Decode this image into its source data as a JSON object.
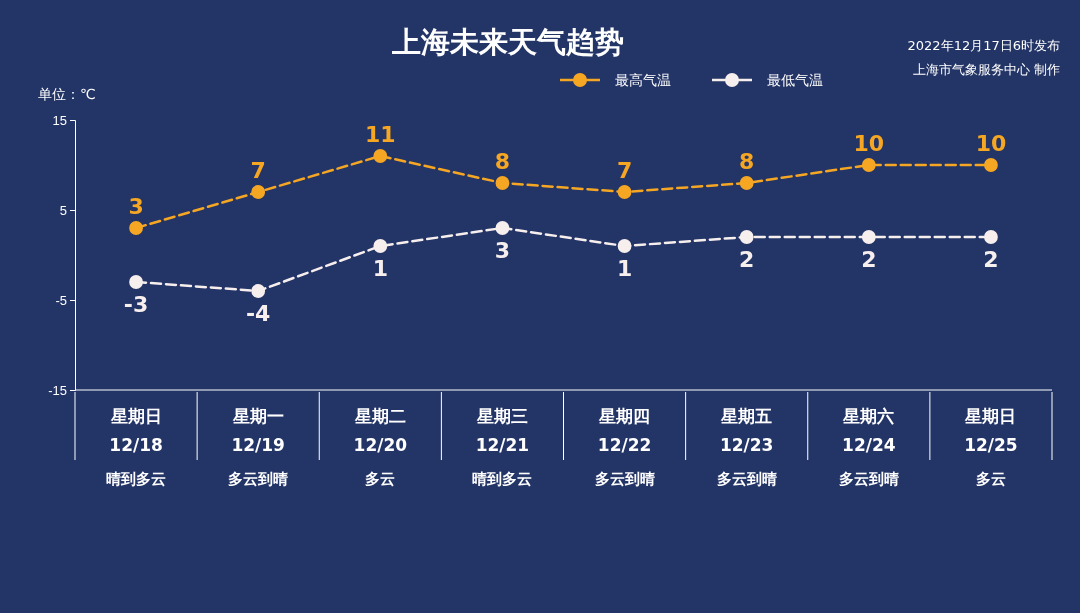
{
  "chart_data": {
    "type": "line",
    "title": "上海未来天气趋势",
    "ylabel": "单位：℃",
    "annotations": [
      "2022年12月17日6时发布",
      "上海市气象服务中心 制作"
    ],
    "categories": [
      "星期日\n12/18\n晴到多云",
      "星期一\n12/19\n多云到晴",
      "星期二\n12/20\n多云",
      "星期三\n12/21\n晴到多云",
      "星期四\n12/22\n多云到晴",
      "星期五\n12/23\n多云到晴",
      "星期六\n12/24\n多云到晴",
      "星期日\n12/25\n多云"
    ],
    "series": [
      {
        "name": "最高气温",
        "color": "#f5a623",
        "values": [
          3,
          7,
          11,
          8,
          7,
          8,
          10,
          10
        ]
      },
      {
        "name": "最低气温",
        "color": "#f7eeee",
        "values": [
          -3,
          -4,
          1,
          3,
          1,
          2,
          2,
          2
        ]
      }
    ],
    "ylim": [
      -15,
      15
    ],
    "yticks": [
      -15,
      -5,
      5,
      15
    ],
    "grid": false,
    "legend": "top right",
    "marker": "circle",
    "line_style": "dashed",
    "data_labels": true
  }
}
